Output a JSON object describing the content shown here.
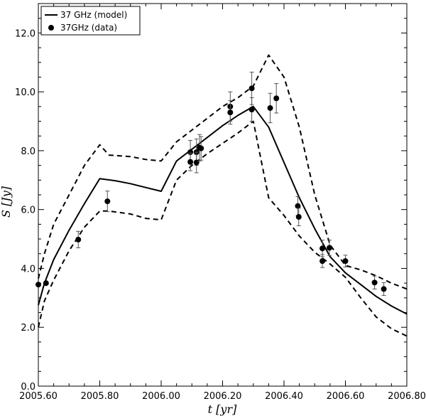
{
  "chart_data": {
    "type": "line",
    "title": "",
    "xlabel": "t [yr]",
    "ylabel": "S [Jy]",
    "xlim": [
      2005.6,
      2006.8
    ],
    "ylim": [
      0.0,
      13.0
    ],
    "grid": false,
    "legend_position": "top-left",
    "x_ticks": [
      2005.6,
      2005.8,
      2006.0,
      2006.2,
      2006.4,
      2006.6,
      2006.8
    ],
    "x_tick_labels": [
      "2005.60",
      "2005.80",
      "2006.00",
      "2006.20",
      "2006.40",
      "2006.60",
      "2006.80"
    ],
    "y_ticks": [
      0,
      2,
      4,
      6,
      8,
      10,
      12
    ],
    "y_tick_labels": [
      "0.0",
      "2.0",
      "4.0",
      "6.0",
      "8.0",
      "10.0",
      "12.0"
    ],
    "series": [
      {
        "name": "37 GHz (model)",
        "style": "solid",
        "color": "#000000",
        "x": [
          2005.6,
          2005.62,
          2005.65,
          2005.7,
          2005.75,
          2005.8,
          2005.85,
          2005.9,
          2005.95,
          2006.0,
          2006.05,
          2006.1,
          2006.15,
          2006.2,
          2006.25,
          2006.3,
          2006.35,
          2006.4,
          2006.45,
          2006.5,
          2006.55,
          2006.6,
          2006.65,
          2006.7,
          2006.75,
          2006.8
        ],
        "y": [
          2.75,
          3.5,
          4.3,
          5.3,
          6.2,
          7.05,
          6.98,
          6.88,
          6.75,
          6.62,
          7.65,
          8.05,
          8.45,
          8.85,
          9.2,
          9.5,
          8.8,
          7.6,
          6.4,
          5.35,
          4.4,
          3.85,
          3.45,
          3.05,
          2.72,
          2.45
        ]
      },
      {
        "name": "",
        "style": "dashed",
        "color": "#000000",
        "x": [
          2005.6,
          2005.62,
          2005.65,
          2005.7,
          2005.75,
          2005.8,
          2005.83,
          2005.9,
          2005.95,
          2006.0,
          2006.05,
          2006.1,
          2006.15,
          2006.2,
          2006.25,
          2006.3,
          2006.35,
          2006.4,
          2006.45,
          2006.5,
          2006.55,
          2006.6,
          2006.65,
          2006.7,
          2006.75,
          2006.8
        ],
        "y": [
          3.65,
          4.5,
          5.5,
          6.5,
          7.5,
          8.2,
          7.85,
          7.8,
          7.7,
          7.65,
          8.3,
          8.7,
          9.1,
          9.5,
          9.8,
          10.2,
          11.25,
          10.5,
          8.8,
          6.5,
          4.8,
          4.1,
          3.95,
          3.75,
          3.5,
          3.3
        ]
      },
      {
        "name": "",
        "style": "dashed",
        "color": "#000000",
        "x": [
          2005.6,
          2005.62,
          2005.65,
          2005.7,
          2005.75,
          2005.8,
          2005.83,
          2005.9,
          2005.95,
          2006.0,
          2006.05,
          2006.1,
          2006.15,
          2006.2,
          2006.25,
          2006.3,
          2006.35,
          2006.4,
          2006.45,
          2006.5,
          2006.55,
          2006.6,
          2006.65,
          2006.7,
          2006.75,
          2006.8
        ],
        "y": [
          2.0,
          2.9,
          3.6,
          4.6,
          5.4,
          5.95,
          5.95,
          5.85,
          5.7,
          5.65,
          7.0,
          7.5,
          7.9,
          8.25,
          8.6,
          9.0,
          6.4,
          5.8,
          5.1,
          4.55,
          4.15,
          3.7,
          3.0,
          2.35,
          1.95,
          1.7
        ]
      },
      {
        "name": "37GHz (data)",
        "style": "markers",
        "color": "#000000",
        "points": [
          {
            "x": 2005.6,
            "y": 3.45,
            "err": 0.0
          },
          {
            "x": 2005.625,
            "y": 3.5,
            "err": 0.0
          },
          {
            "x": 2005.73,
            "y": 4.98,
            "err": 0.28
          },
          {
            "x": 2005.825,
            "y": 6.28,
            "err": 0.35
          },
          {
            "x": 2006.095,
            "y": 7.95,
            "err": 0.4
          },
          {
            "x": 2006.095,
            "y": 7.62,
            "err": 0.3
          },
          {
            "x": 2006.115,
            "y": 7.95,
            "err": 0.45
          },
          {
            "x": 2006.115,
            "y": 7.6,
            "err": 0.35
          },
          {
            "x": 2006.125,
            "y": 8.1,
            "err": 0.45
          },
          {
            "x": 2006.13,
            "y": 8.08,
            "err": 0.4
          },
          {
            "x": 2006.225,
            "y": 9.5,
            "err": 0.5
          },
          {
            "x": 2006.225,
            "y": 9.3,
            "err": 0.4
          },
          {
            "x": 2006.295,
            "y": 10.12,
            "err": 0.55
          },
          {
            "x": 2006.295,
            "y": 9.4,
            "err": 0.4
          },
          {
            "x": 2006.355,
            "y": 9.45,
            "err": 0.5
          },
          {
            "x": 2006.375,
            "y": 9.78,
            "err": 0.5
          },
          {
            "x": 2006.445,
            "y": 6.12,
            "err": 0.32
          },
          {
            "x": 2006.448,
            "y": 5.75,
            "err": 0.3
          },
          {
            "x": 2006.525,
            "y": 4.68,
            "err": 0.28
          },
          {
            "x": 2006.525,
            "y": 4.25,
            "err": 0.22
          },
          {
            "x": 2006.548,
            "y": 4.7,
            "err": 0.26
          },
          {
            "x": 2006.6,
            "y": 4.25,
            "err": 0.2
          },
          {
            "x": 2006.695,
            "y": 3.52,
            "err": 0.22
          },
          {
            "x": 2006.725,
            "y": 3.3,
            "err": 0.22
          }
        ]
      }
    ]
  }
}
